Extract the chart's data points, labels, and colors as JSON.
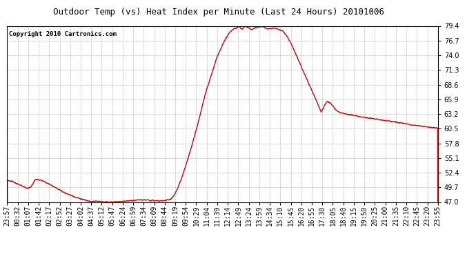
{
  "title": "Outdoor Temp (vs) Heat Index per Minute (Last 24 Hours) 20101006",
  "copyright": "Copyright 2010 Cartronics.com",
  "background_color": "#ffffff",
  "plot_background": "#ffffff",
  "line_color": "#cc0000",
  "line_width": 1.0,
  "yticks": [
    47.0,
    49.7,
    52.4,
    55.1,
    57.8,
    60.5,
    63.2,
    65.9,
    68.6,
    71.3,
    74.0,
    76.7,
    79.4
  ],
  "ylim": [
    47.0,
    79.4
  ],
  "xtick_labels": [
    "23:57",
    "00:32",
    "01:07",
    "01:42",
    "02:17",
    "02:52",
    "03:27",
    "04:02",
    "04:37",
    "05:12",
    "05:47",
    "06:24",
    "06:59",
    "07:34",
    "08:09",
    "08:44",
    "09:19",
    "09:54",
    "10:29",
    "11:04",
    "11:39",
    "12:14",
    "12:49",
    "13:24",
    "13:59",
    "14:34",
    "15:10",
    "15:45",
    "16:20",
    "16:55",
    "17:30",
    "18:05",
    "18:40",
    "19:15",
    "19:50",
    "20:25",
    "21:00",
    "21:35",
    "22:10",
    "22:45",
    "23:20",
    "23:55"
  ],
  "grid_color": "#aaaaaa",
  "grid_style": "--",
  "grid_alpha": 0.8,
  "title_fontsize": 9,
  "copyright_fontsize": 6.5,
  "tick_fontsize": 7
}
